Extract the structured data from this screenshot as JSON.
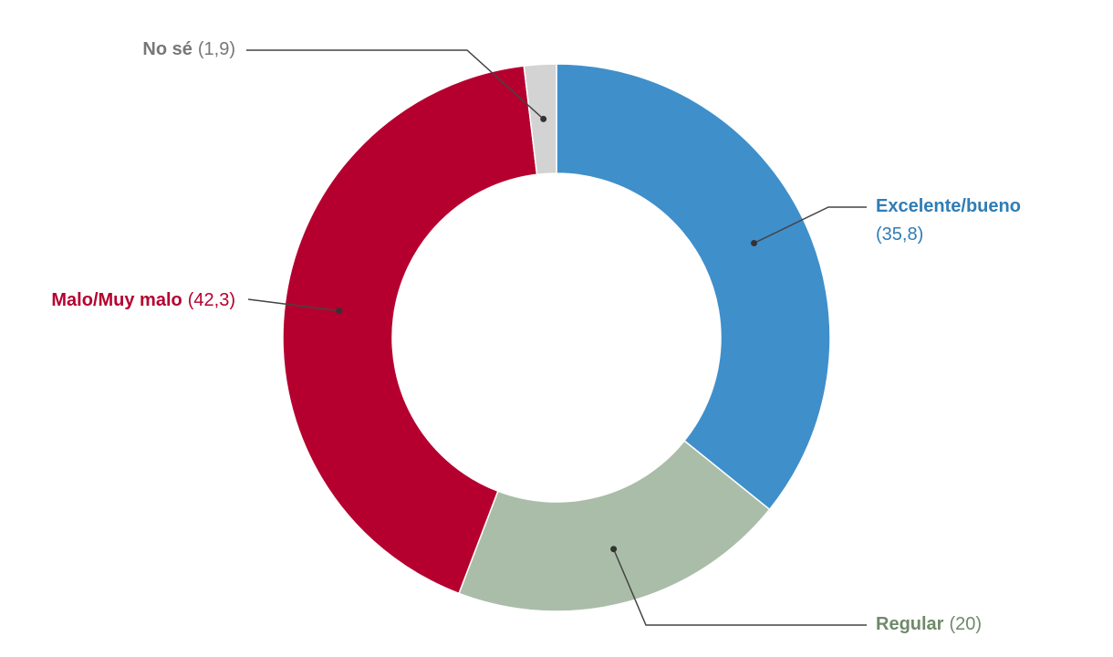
{
  "chart_data": {
    "type": "donut",
    "categories": [
      "Excelente/bueno",
      "Regular",
      "Malo/Muy malo",
      "No sé"
    ],
    "values": [
      35.8,
      20,
      42.3,
      1.9
    ],
    "value_labels": [
      "(35,8)",
      "(20)",
      "(42,3)",
      "(1,9)"
    ],
    "colors": [
      "#3f8fcb",
      "#aabda8",
      "#b5002f",
      "#d3d3d3"
    ],
    "label_colors": [
      "#2f7db5",
      "#6f8a6a",
      "#b5002f",
      "#777777"
    ]
  }
}
